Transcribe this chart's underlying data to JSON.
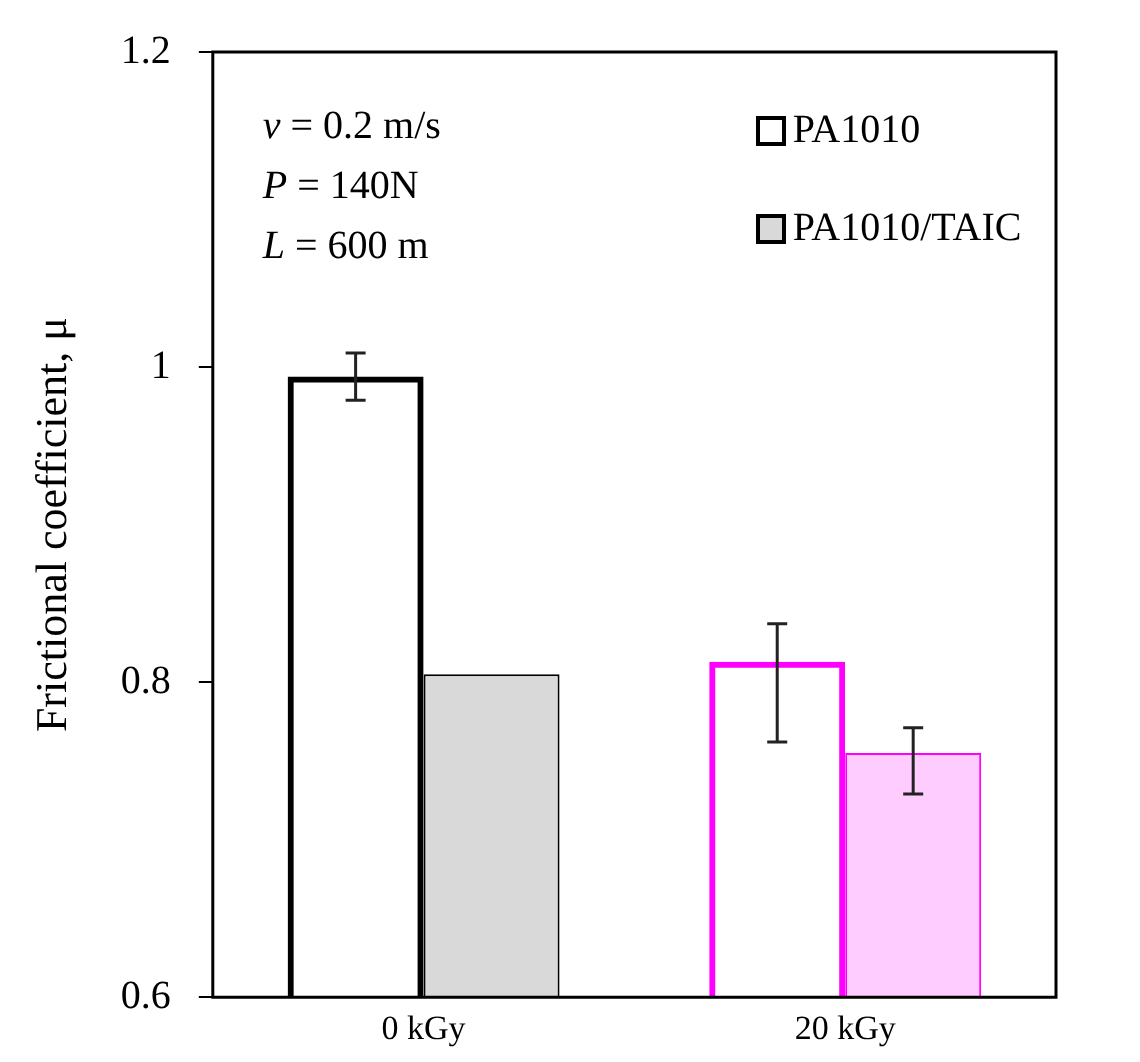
{
  "chart_data": {
    "type": "bar",
    "ylabel": "Frictional coefficient, μ",
    "categories": [
      "0 kGy",
      "20 kGy"
    ],
    "series": [
      {
        "name": "PA1010",
        "colors": [
          "#000000",
          "#ff00ff"
        ],
        "values": [
          0.994,
          0.813
        ],
        "errors": [
          0.015,
          [
            0.762,
            0.837
          ]
        ]
      },
      {
        "name": "PA1010/TAIC",
        "colors": [
          "#d9d9d9",
          "#ffccff"
        ],
        "values": [
          0.805,
          0.755
        ],
        "errors": [
          null,
          [
            0.729,
            0.771
          ]
        ]
      }
    ],
    "ylim": [
      0.6,
      1.2
    ],
    "yticks": [
      0.6,
      0.8,
      1,
      1.2
    ],
    "grid": false,
    "legend": "top right",
    "annotations": [
      "v = 0.2 m/s",
      "P = 140N",
      "L = 600 m"
    ]
  }
}
